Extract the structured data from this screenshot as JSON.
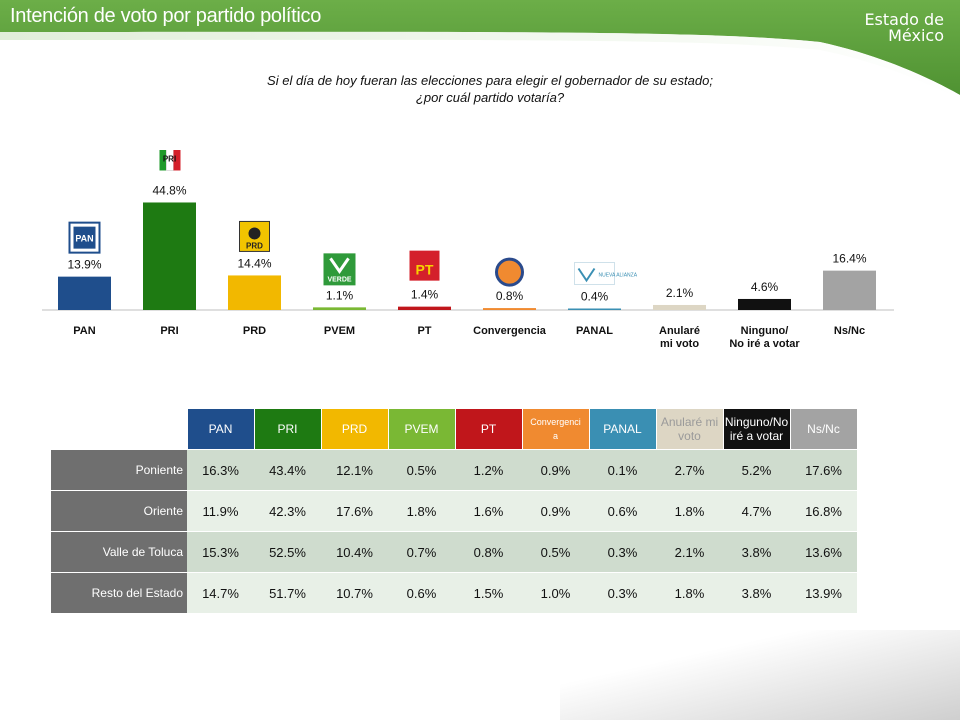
{
  "header": {
    "title": "Intención de voto por partido político",
    "state_line1": "Estado de",
    "state_line2": "México"
  },
  "question": {
    "line1": "Si el día de hoy fueran las elecciones para elegir el gobernador de su estado;",
    "line2": "¿por cuál partido votaría?"
  },
  "colors": {
    "header_green": "#5a9e3c",
    "PAN": "#1f4e8c",
    "PRI": "#1e7a12",
    "PRD": "#f2b800",
    "PVEM": "#7ab834",
    "PT": "#c0161b",
    "Convergencia": "#f08a30",
    "PANAL": "#3a8fb3",
    "Anulare": "#ddd6c4",
    "Ninguno": "#111111",
    "NsNc": "#a3a3a3"
  },
  "chart_data": {
    "type": "bar",
    "categories": [
      "PAN",
      "PRI",
      "PRD",
      "PVEM",
      "PT",
      "Convergencia",
      "PANAL",
      "Anularé mi voto",
      "Ninguno/ No iré a votar",
      "Ns/Nc"
    ],
    "category_lines": [
      [
        "PAN"
      ],
      [
        "PRI"
      ],
      [
        "PRD"
      ],
      [
        "PVEM"
      ],
      [
        "PT"
      ],
      [
        "Convergencia"
      ],
      [
        "PANAL"
      ],
      [
        "Anularé",
        "mi voto"
      ],
      [
        "Ninguno/",
        "No iré a votar"
      ],
      [
        "Ns/Nc"
      ]
    ],
    "values": [
      13.9,
      44.8,
      14.4,
      1.1,
      1.4,
      0.8,
      0.4,
      2.1,
      4.6,
      16.4
    ],
    "data_labels": [
      "13.9%",
      "44.8%",
      "14.4%",
      "1.1%",
      "1.4%",
      "0.8%",
      "0.4%",
      "2.1%",
      "4.6%",
      "16.4%"
    ],
    "title": "",
    "xlabel": "",
    "ylabel": "",
    "ylim": [
      0,
      50
    ],
    "grid": false,
    "logos": [
      "PAN",
      "PRI",
      "PRD",
      "VERDE",
      "PT",
      "",
      "NUEVA ALIANZA",
      "",
      "",
      ""
    ]
  },
  "table": {
    "headers": [
      {
        "lines": [
          "PAN"
        ],
        "bg": "#1f4e8c",
        "fg": "#ffffff",
        "size": "12px"
      },
      {
        "lines": [
          "PRI"
        ],
        "bg": "#1e7a12",
        "fg": "#ffffff",
        "size": "12px"
      },
      {
        "lines": [
          "PRD"
        ],
        "bg": "#f2b800",
        "fg": "#ffffff",
        "size": "12px"
      },
      {
        "lines": [
          "PVEM"
        ],
        "bg": "#7ab834",
        "fg": "#ffffff",
        "size": "12px"
      },
      {
        "lines": [
          "PT"
        ],
        "bg": "#c0161b",
        "fg": "#ffffff",
        "size": "12px"
      },
      {
        "lines": [
          "Convergenci",
          "a"
        ],
        "bg": "#f08a30",
        "fg": "#ffffff",
        "size": "9px"
      },
      {
        "lines": [
          "PANAL"
        ],
        "bg": "#3a8fb3",
        "fg": "#ffffff",
        "size": "12px"
      },
      {
        "lines": [
          "Anularé mi",
          "voto"
        ],
        "bg": "#ddd6c4",
        "fg": "#9a9a9a",
        "size": "12px"
      },
      {
        "lines": [
          "Ninguno/No",
          "iré a votar"
        ],
        "bg": "#111111",
        "fg": "#ffffff",
        "size": "12px"
      },
      {
        "lines": [
          "Ns/Nc"
        ],
        "bg": "#a3a3a3",
        "fg": "#ffffff",
        "size": "12px"
      }
    ],
    "rows": [
      {
        "label": "Poniente",
        "values": [
          "16.3%",
          "43.4%",
          "12.1%",
          "0.5%",
          "1.2%",
          "0.9%",
          "0.1%",
          "2.7%",
          "5.2%",
          "17.6%"
        ]
      },
      {
        "label": "Oriente",
        "values": [
          "11.9%",
          "42.3%",
          "17.6%",
          "1.8%",
          "1.6%",
          "0.9%",
          "0.6%",
          "1.8%",
          "4.7%",
          "16.8%"
        ]
      },
      {
        "label": "Valle de Toluca",
        "values": [
          "15.3%",
          "52.5%",
          "10.4%",
          "0.7%",
          "0.8%",
          "0.5%",
          "0.3%",
          "2.1%",
          "3.8%",
          "13.6%"
        ]
      },
      {
        "label": "Resto del Estado",
        "values": [
          "14.7%",
          "51.7%",
          "10.7%",
          "0.6%",
          "1.5%",
          "1.0%",
          "0.3%",
          "1.8%",
          "3.8%",
          "13.9%"
        ]
      }
    ]
  }
}
